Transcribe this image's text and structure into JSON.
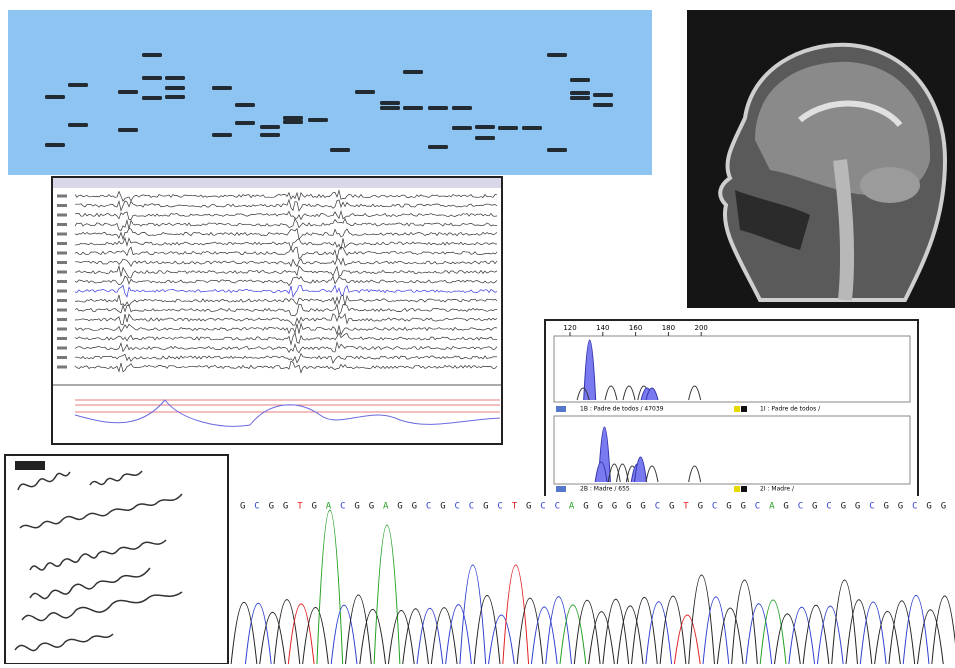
{
  "electropherogram": {
    "axis_ticks": [
      120,
      140,
      160,
      180,
      200
    ],
    "panels": [
      {
        "left_label": "1B : Padre de todos / 47039",
        "right_label": "1I : Padre de todos /"
      },
      {
        "left_label": "2B : Madre / 655",
        "right_label": "2I : Madre /"
      }
    ]
  },
  "sequence": {
    "bases": [
      "G",
      "C",
      "G",
      "G",
      "T",
      "G",
      "A",
      "C",
      "G",
      "G",
      "A",
      "G",
      "G",
      "C",
      "G",
      "C",
      "C",
      "G",
      "C",
      "T",
      "G",
      "C",
      "C",
      "A",
      "G",
      "G",
      "G",
      "G",
      "G",
      "C",
      "G",
      "T",
      "G",
      "C",
      "G",
      "G",
      "C",
      "A",
      "G",
      "C",
      "G",
      "C",
      "G",
      "G",
      "C",
      "G",
      "G",
      "C",
      "G",
      "G"
    ]
  }
}
